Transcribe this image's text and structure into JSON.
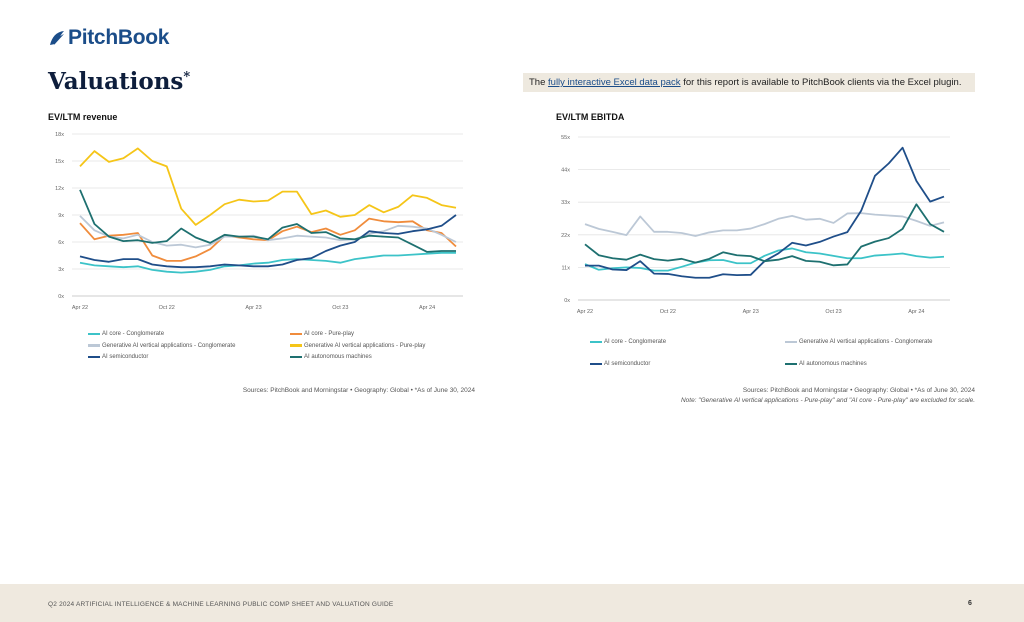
{
  "header": {
    "logo": "PitchBook",
    "title": "Valuations",
    "title_mark": "*",
    "banner": {
      "pre": "The ",
      "link": "fully interactive Excel data pack",
      "post": " for this report is available to PitchBook clients via the Excel plugin."
    }
  },
  "colors": {
    "ai_core_conglomerate": "#3CC3C8",
    "ai_core_pureplay": "#F08C3C",
    "genai_conglomerate": "#BCC8D6",
    "genai_pureplay": "#F5C518",
    "ai_semiconductor": "#1F4E89",
    "ai_autonomous": "#1E7070"
  },
  "chart_data": [
    {
      "type": "line",
      "title": "EV/LTM revenue",
      "ylim": [
        0,
        18
      ],
      "yticks": [
        "0x",
        "3x",
        "6x",
        "9x",
        "12x",
        "15x",
        "18x"
      ],
      "xticks": [
        "Apr 22",
        "Oct 22",
        "Apr 23",
        "Oct 23",
        "Apr 24"
      ],
      "x_start": "Apr 22",
      "x_end": "Jun 24",
      "grid": true,
      "legend": "bottom",
      "series": [
        {
          "name": "AI core - Conglomerate",
          "color": "#3CC3C8",
          "values": [
            3.7,
            3.4,
            3.3,
            3.2,
            3.3,
            2.9,
            2.7,
            2.6,
            2.7,
            2.9,
            3.3,
            3.4,
            3.6,
            3.7,
            4.0,
            4.1,
            4.0,
            3.9,
            3.7,
            4.1,
            4.3,
            4.5,
            4.5,
            4.6,
            4.7,
            4.8,
            4.8
          ]
        },
        {
          "name": "AI core - Pure-play",
          "color": "#F08C3C",
          "values": [
            8.1,
            6.3,
            6.7,
            6.8,
            7.0,
            4.5,
            3.9,
            3.9,
            4.4,
            5.2,
            6.7,
            6.5,
            6.3,
            6.2,
            7.2,
            7.7,
            7.1,
            7.5,
            6.8,
            7.3,
            8.6,
            8.3,
            8.2,
            8.3,
            7.3,
            7.0,
            5.5
          ]
        },
        {
          "name": "Generative AI vertical applications - Conglomerate",
          "color": "#BCC8D6",
          "values": [
            8.9,
            7.3,
            6.6,
            6.4,
            6.8,
            6.0,
            5.6,
            5.7,
            5.4,
            5.7,
            6.6,
            6.6,
            6.7,
            6.2,
            6.4,
            6.7,
            6.6,
            6.5,
            6.2,
            6.3,
            6.9,
            7.2,
            7.8,
            7.7,
            7.5,
            6.8,
            6.0
          ]
        },
        {
          "name": "Generative AI vertical applications - Pure-play",
          "color": "#F5C518",
          "values": [
            14.4,
            16.1,
            14.9,
            15.3,
            16.4,
            15.0,
            14.4,
            9.7,
            7.9,
            9.0,
            10.2,
            10.7,
            10.5,
            10.6,
            11.6,
            11.6,
            9.1,
            9.5,
            8.8,
            9.0,
            10.1,
            9.3,
            9.9,
            11.2,
            10.9,
            10.1,
            9.8
          ]
        },
        {
          "name": "AI semiconductor",
          "color": "#1F4E89",
          "values": [
            4.4,
            4.0,
            3.8,
            4.1,
            4.1,
            3.5,
            3.3,
            3.2,
            3.2,
            3.3,
            3.5,
            3.4,
            3.3,
            3.3,
            3.5,
            4.0,
            4.2,
            5.0,
            5.6,
            6.0,
            7.2,
            7.0,
            6.9,
            7.2,
            7.4,
            7.8,
            9.0
          ]
        },
        {
          "name": "AI autonomous machines",
          "color": "#1E7070",
          "values": [
            11.8,
            8.0,
            6.6,
            6.1,
            6.2,
            5.9,
            6.1,
            7.5,
            6.5,
            5.9,
            6.8,
            6.6,
            6.6,
            6.3,
            7.6,
            8.0,
            7.0,
            7.1,
            6.4,
            6.3,
            6.7,
            6.6,
            6.5,
            5.7,
            4.9,
            5.0,
            5.0
          ]
        }
      ],
      "source": "Sources: PitchBook and Morningstar  •  Geography: Global  •  *As of June 30, 2024"
    },
    {
      "type": "line",
      "title": "EV/LTM EBITDA",
      "ylim": [
        0,
        55
      ],
      "yticks": [
        "0x",
        "11x",
        "22x",
        "33x",
        "44x",
        "55x"
      ],
      "xticks": [
        "Apr 22",
        "Oct 22",
        "Apr 23",
        "Oct 23",
        "Apr 24"
      ],
      "x_start": "Apr 22",
      "x_end": "Jun 24",
      "grid": true,
      "legend": "bottom",
      "series": [
        {
          "name": "AI core - Conglomerate",
          "color": "#3CC3C8",
          "values": [
            12.1,
            10.2,
            10.7,
            11.0,
            10.8,
            9.9,
            9.9,
            11.2,
            12.6,
            13.4,
            13.5,
            12.4,
            12.4,
            14.9,
            16.7,
            17.4,
            16.1,
            15.7,
            14.9,
            14.1,
            14.1,
            15.0,
            15.3,
            15.7,
            14.8,
            14.3,
            14.6
          ]
        },
        {
          "name": "Generative AI vertical applications - Conglomerate",
          "color": "#BCC8D6",
          "values": [
            25.6,
            24.0,
            23.0,
            21.9,
            28.2,
            23.0,
            23.0,
            22.6,
            21.6,
            22.8,
            23.5,
            23.5,
            24.1,
            25.6,
            27.4,
            28.4,
            27.1,
            27.4,
            26.0,
            29.2,
            29.3,
            28.8,
            28.5,
            28.2,
            26.7,
            25.0,
            26.2
          ]
        },
        {
          "name": "AI semiconductor",
          "color": "#1F4E89",
          "values": [
            11.6,
            11.6,
            10.3,
            10.1,
            13.1,
            8.9,
            8.8,
            8.0,
            7.5,
            7.5,
            8.7,
            8.4,
            8.5,
            13.1,
            15.7,
            19.3,
            18.4,
            19.6,
            21.4,
            22.9,
            30.1,
            41.9,
            46.1,
            51.4,
            40.2,
            33.2,
            34.9
          ]
        },
        {
          "name": "AI autonomous machines",
          "color": "#1E7070",
          "values": [
            18.8,
            15.1,
            14.1,
            13.6,
            15.3,
            13.8,
            13.3,
            13.9,
            12.6,
            13.9,
            16.1,
            15.1,
            14.8,
            13.1,
            13.6,
            14.8,
            13.2,
            12.9,
            11.7,
            12.0,
            18.0,
            19.7,
            20.9,
            24.0,
            32.3,
            25.6,
            23.0
          ]
        }
      ],
      "source": "Sources: PitchBook and Morningstar  •  Geography: Global  •  *As of June 30, 2024",
      "note": "Note: \"Generative AI vertical applications - Pure-play\" and \"AI core - Pure-play\" are excluded for scale."
    }
  ],
  "footer": {
    "text": "Q2 2024 ARTIFICIAL INTELLIGENCE & MACHINE LEARNING PUBLIC COMP SHEET AND VALUATION GUIDE",
    "page": "6"
  }
}
